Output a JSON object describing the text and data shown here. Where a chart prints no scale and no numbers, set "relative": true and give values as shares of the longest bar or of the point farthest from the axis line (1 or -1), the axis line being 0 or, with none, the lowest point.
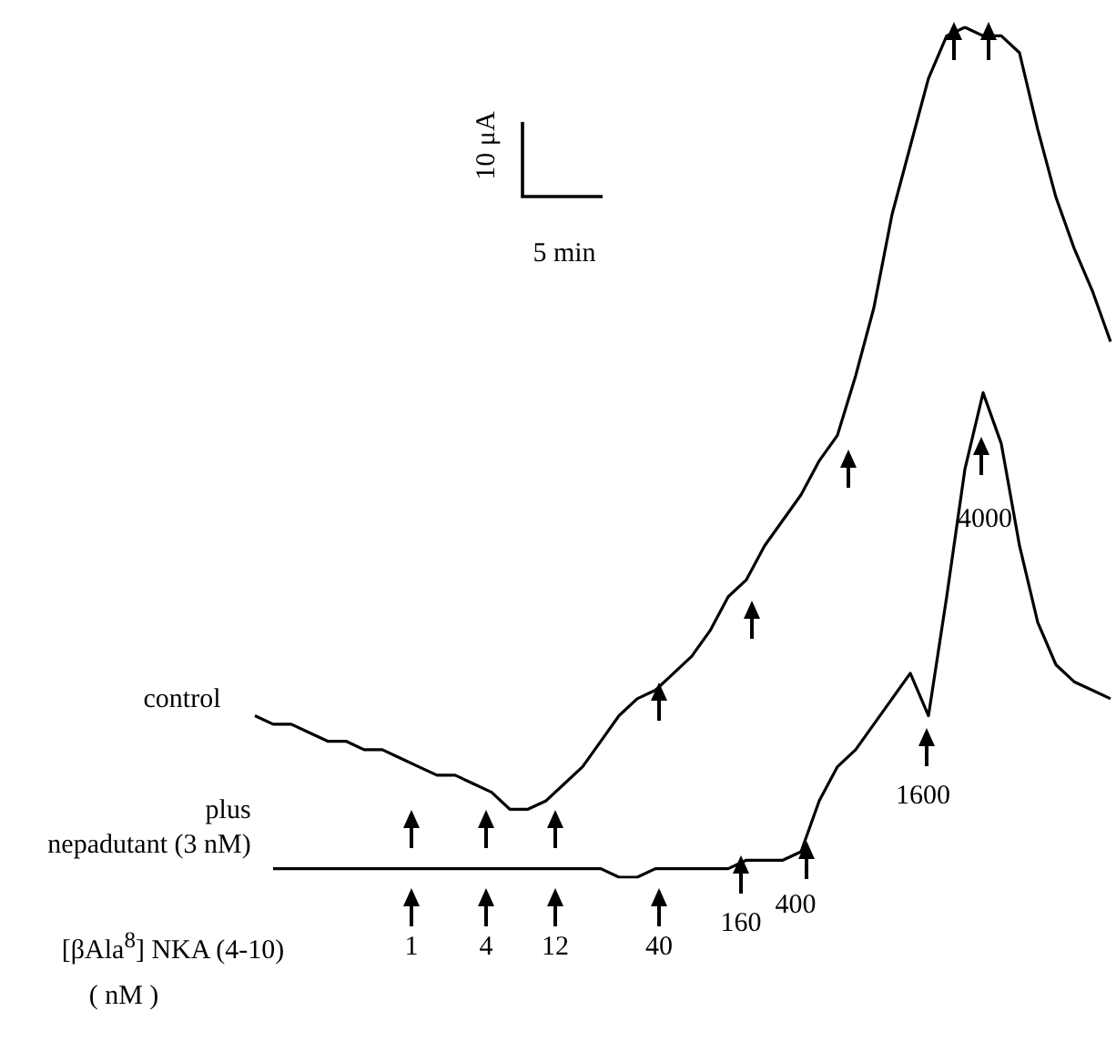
{
  "chart_data": {
    "type": "line",
    "relative": true,
    "legend": false,
    "categories": [
      null,
      null,
      null,
      null,
      null,
      null,
      null,
      null,
      null,
      null,
      null,
      null,
      null,
      null,
      null,
      null,
      null,
      null,
      null,
      null,
      null,
      null,
      null,
      null,
      null,
      null,
      null,
      null,
      null,
      null,
      null,
      null,
      null,
      null,
      null,
      null,
      null,
      null,
      null,
      null,
      null,
      null,
      null,
      null,
      null,
      null,
      null,
      null
    ],
    "series": [
      {
        "name": "control",
        "color": "#000000",
        "values": [
          0.19,
          0.18,
          0.18,
          0.17,
          0.16,
          0.16,
          0.15,
          0.15,
          0.14,
          0.13,
          0.12,
          0.12,
          0.11,
          0.1,
          0.08,
          0.08,
          0.09,
          0.11,
          0.13,
          0.16,
          0.19,
          0.21,
          0.22,
          0.24,
          0.26,
          0.29,
          0.33,
          0.35,
          0.39,
          0.42,
          0.45,
          0.49,
          0.52,
          0.59,
          0.67,
          0.78,
          0.86,
          0.94,
          0.99,
          1,
          0.99,
          0.99,
          0.97,
          0.88,
          0.8,
          0.74,
          0.69,
          0.63
        ]
      },
      {
        "name": "plus nepadutant (3 nM)",
        "color": "#000000",
        "values": [
          null,
          0.01,
          0.01,
          0.01,
          0.01,
          0.01,
          0.01,
          0.01,
          0.01,
          0.01,
          0.01,
          0.01,
          0.01,
          0.01,
          0.01,
          0.01,
          0.01,
          0.01,
          0.01,
          0.01,
          0,
          0,
          0.01,
          0.01,
          0.01,
          0.01,
          0.01,
          0.02,
          0.02,
          0.02,
          0.03,
          0.09,
          0.13,
          0.15,
          0.18,
          0.21,
          0.24,
          0.19,
          0.33,
          0.48,
          0.57,
          0.51,
          0.39,
          0.3,
          0.25,
          0.23,
          0.22,
          0.21
        ]
      }
    ],
    "annotations": [
      "10 μA",
      "5 min",
      "1",
      "4",
      "12",
      "40",
      "160",
      "400",
      "1600",
      "4000",
      "[βAla$^{8}$] NKA (4-10)",
      "( nM )"
    ]
  }
}
